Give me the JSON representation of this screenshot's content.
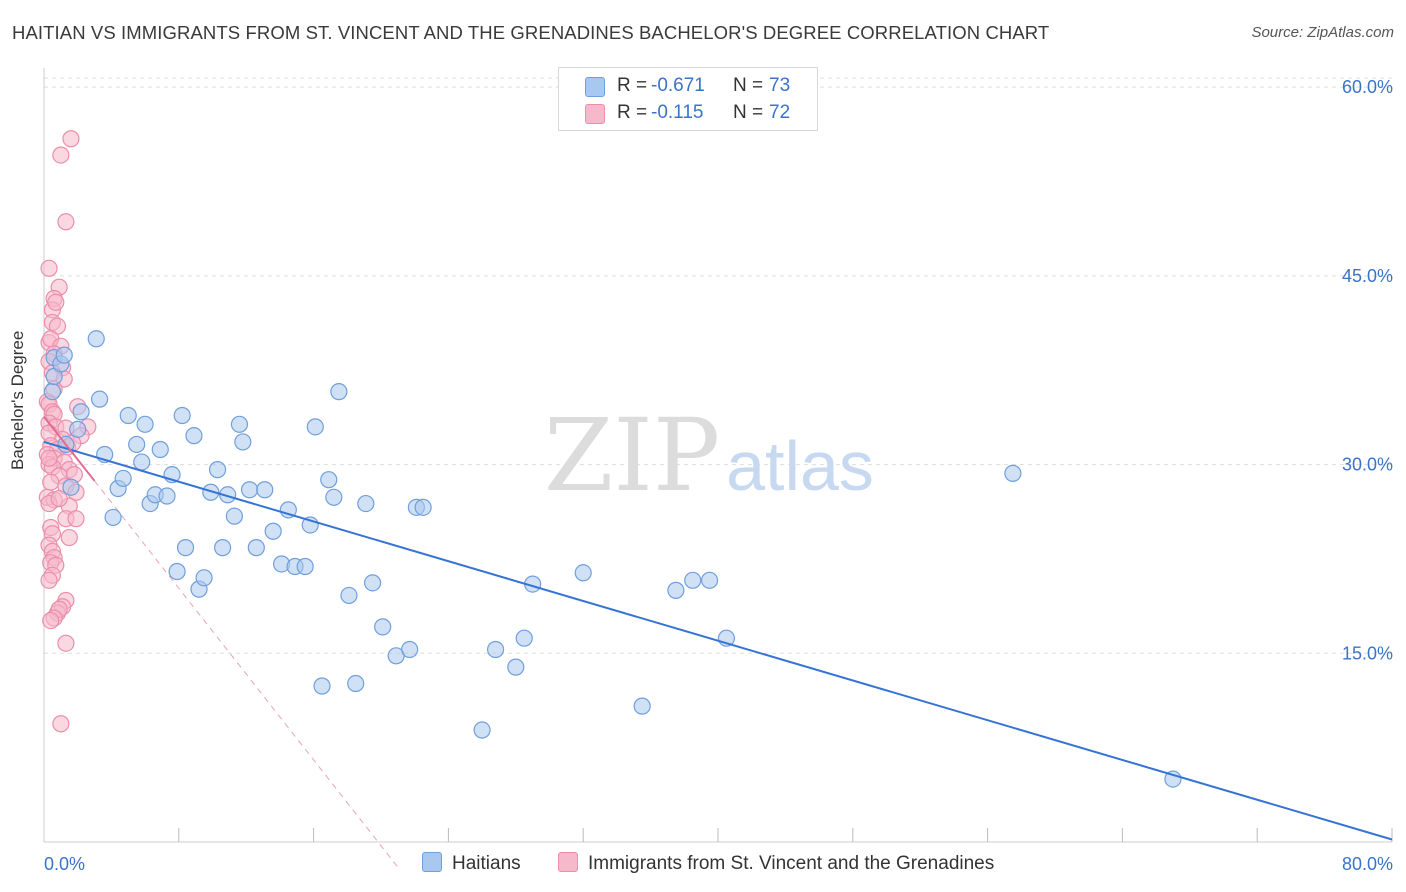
{
  "title": "HAITIAN VS IMMIGRANTS FROM ST. VINCENT AND THE GRENADINES BACHELOR'S DEGREE CORRELATION CHART",
  "source": "Source: ZipAtlas.com",
  "watermark": {
    "zip": "ZIP",
    "atlas": "atlas"
  },
  "legend": {
    "rows": [
      {
        "r_label": "R =",
        "r_value": "-0.671",
        "n_label": "N =",
        "n_value": "73"
      },
      {
        "r_label": "R =",
        "r_value": "-0.115",
        "n_label": "N =",
        "n_value": "72"
      }
    ]
  },
  "bottom_legend": {
    "haitians": "Haitians",
    "svg_immigrants": "Immigrants from St. Vincent and the Grenadines"
  },
  "colors": {
    "blue_fill": "#a9c8ef",
    "blue_stroke": "#6f9fdc",
    "blue_line": "#3574d4",
    "pink_fill": "#f6b8cb",
    "pink_stroke": "#ec8eab",
    "pink_line": "#e26a93",
    "axis_label": "#3b73c9",
    "grid": "#dddddd"
  },
  "chart_data": {
    "type": "scatter",
    "title": "HAITIAN VS IMMIGRANTS FROM ST. VINCENT AND THE GRENADINES BACHELOR'S DEGREE CORRELATION CHART",
    "xlabel": "",
    "ylabel": "Bachelor's Degree",
    "xlim": [
      0,
      80
    ],
    "ylim": [
      0,
      62
    ],
    "x_tick_labels": [
      "0.0%",
      "80.0%"
    ],
    "y_ticks": [
      15,
      30,
      45,
      60
    ],
    "y_tick_labels": [
      "15.0%",
      "30.0%",
      "45.0%",
      "60.0%"
    ],
    "grid": true,
    "legend_position": "top-center",
    "series": [
      {
        "name": "Haitians",
        "color": "#a9c8ef",
        "points": [
          [
            0.5,
            35.8
          ],
          [
            0.6,
            38.5
          ],
          [
            0.6,
            37.0
          ],
          [
            1.0,
            38.0
          ],
          [
            1.2,
            38.7
          ],
          [
            1.3,
            31.6
          ],
          [
            1.6,
            28.2
          ],
          [
            2.0,
            32.8
          ],
          [
            2.2,
            34.2
          ],
          [
            3.1,
            40.0
          ],
          [
            3.3,
            35.2
          ],
          [
            3.6,
            30.8
          ],
          [
            4.1,
            25.8
          ],
          [
            4.4,
            28.1
          ],
          [
            4.7,
            28.9
          ],
          [
            5.0,
            33.9
          ],
          [
            5.5,
            31.6
          ],
          [
            5.8,
            30.2
          ],
          [
            6.0,
            33.2
          ],
          [
            6.3,
            26.9
          ],
          [
            6.6,
            27.6
          ],
          [
            6.9,
            31.2
          ],
          [
            7.3,
            27.5
          ],
          [
            7.6,
            29.2
          ],
          [
            7.9,
            21.5
          ],
          [
            8.2,
            33.9
          ],
          [
            8.4,
            23.4
          ],
          [
            8.9,
            32.3
          ],
          [
            9.2,
            20.1
          ],
          [
            9.5,
            21.0
          ],
          [
            9.9,
            27.8
          ],
          [
            10.3,
            29.6
          ],
          [
            10.6,
            23.4
          ],
          [
            10.9,
            27.6
          ],
          [
            11.3,
            25.9
          ],
          [
            11.6,
            33.2
          ],
          [
            11.8,
            31.8
          ],
          [
            12.2,
            28.0
          ],
          [
            12.6,
            23.4
          ],
          [
            13.1,
            28.0
          ],
          [
            13.6,
            24.7
          ],
          [
            14.1,
            22.1
          ],
          [
            14.5,
            26.4
          ],
          [
            14.9,
            21.9
          ],
          [
            15.5,
            21.9
          ],
          [
            15.8,
            25.2
          ],
          [
            16.1,
            33.0
          ],
          [
            16.5,
            12.4
          ],
          [
            16.9,
            28.8
          ],
          [
            17.2,
            27.4
          ],
          [
            17.5,
            35.8
          ],
          [
            18.1,
            19.6
          ],
          [
            18.5,
            12.6
          ],
          [
            19.1,
            26.9
          ],
          [
            19.5,
            20.6
          ],
          [
            20.1,
            17.1
          ],
          [
            20.9,
            14.8
          ],
          [
            21.7,
            15.3
          ],
          [
            22.1,
            26.6
          ],
          [
            22.5,
            26.6
          ],
          [
            26.0,
            8.9
          ],
          [
            26.8,
            15.3
          ],
          [
            28.0,
            13.9
          ],
          [
            28.5,
            16.2
          ],
          [
            29.0,
            20.5
          ],
          [
            32.0,
            21.4
          ],
          [
            35.5,
            10.8
          ],
          [
            37.5,
            20.0
          ],
          [
            38.5,
            20.8
          ],
          [
            39.5,
            20.8
          ],
          [
            40.5,
            16.2
          ],
          [
            57.5,
            29.3
          ],
          [
            67.0,
            5.0
          ]
        ],
        "trend": [
          [
            0,
            31.8
          ],
          [
            80,
            0.2
          ]
        ]
      },
      {
        "name": "Immigrants from St. Vincent and the Grenadines",
        "color": "#f6b8cb",
        "points": [
          [
            1.6,
            55.9
          ],
          [
            1.0,
            54.6
          ],
          [
            1.3,
            49.3
          ],
          [
            0.3,
            45.6
          ],
          [
            0.9,
            44.1
          ],
          [
            0.6,
            43.2
          ],
          [
            0.5,
            42.3
          ],
          [
            0.7,
            42.9
          ],
          [
            0.5,
            41.3
          ],
          [
            0.8,
            41.0
          ],
          [
            0.3,
            39.7
          ],
          [
            0.4,
            40.0
          ],
          [
            1.0,
            39.4
          ],
          [
            0.6,
            38.8
          ],
          [
            0.3,
            38.2
          ],
          [
            1.1,
            37.7
          ],
          [
            0.5,
            37.3
          ],
          [
            1.2,
            36.8
          ],
          [
            0.6,
            36.0
          ],
          [
            0.2,
            35.0
          ],
          [
            0.3,
            34.8
          ],
          [
            0.5,
            34.2
          ],
          [
            0.6,
            34.0
          ],
          [
            2.0,
            34.6
          ],
          [
            0.3,
            33.3
          ],
          [
            0.7,
            33.0
          ],
          [
            1.3,
            32.9
          ],
          [
            2.6,
            33.0
          ],
          [
            0.3,
            32.5
          ],
          [
            1.1,
            32.0
          ],
          [
            2.2,
            32.3
          ],
          [
            0.4,
            31.5
          ],
          [
            0.8,
            31.2
          ],
          [
            1.4,
            31.4
          ],
          [
            1.7,
            31.7
          ],
          [
            0.2,
            30.8
          ],
          [
            0.6,
            30.5
          ],
          [
            1.2,
            30.2
          ],
          [
            0.3,
            30.0
          ],
          [
            0.5,
            29.8
          ],
          [
            1.5,
            29.6
          ],
          [
            1.8,
            29.2
          ],
          [
            0.9,
            29.1
          ],
          [
            0.4,
            28.6
          ],
          [
            1.3,
            28.3
          ],
          [
            1.9,
            27.8
          ],
          [
            0.2,
            27.4
          ],
          [
            0.6,
            27.2
          ],
          [
            0.3,
            26.9
          ],
          [
            1.5,
            26.7
          ],
          [
            1.3,
            25.7
          ],
          [
            1.9,
            25.7
          ],
          [
            0.4,
            25.0
          ],
          [
            0.5,
            24.5
          ],
          [
            1.5,
            24.2
          ],
          [
            0.3,
            23.6
          ],
          [
            0.5,
            23.1
          ],
          [
            0.6,
            22.6
          ],
          [
            0.4,
            22.2
          ],
          [
            0.7,
            22.0
          ],
          [
            0.5,
            21.2
          ],
          [
            0.3,
            20.8
          ],
          [
            1.3,
            19.2
          ],
          [
            1.1,
            18.7
          ],
          [
            0.8,
            18.2
          ],
          [
            0.9,
            18.5
          ],
          [
            0.6,
            17.8
          ],
          [
            0.4,
            17.6
          ],
          [
            1.3,
            15.8
          ],
          [
            1.0,
            9.4
          ],
          [
            0.3,
            30.5
          ],
          [
            0.9,
            27.3
          ]
        ],
        "trend": [
          [
            0,
            33.8
          ],
          [
            3,
            28.7
          ]
        ],
        "trend_extension": [
          [
            3,
            28.7
          ],
          [
            21,
            -2
          ]
        ]
      }
    ]
  }
}
